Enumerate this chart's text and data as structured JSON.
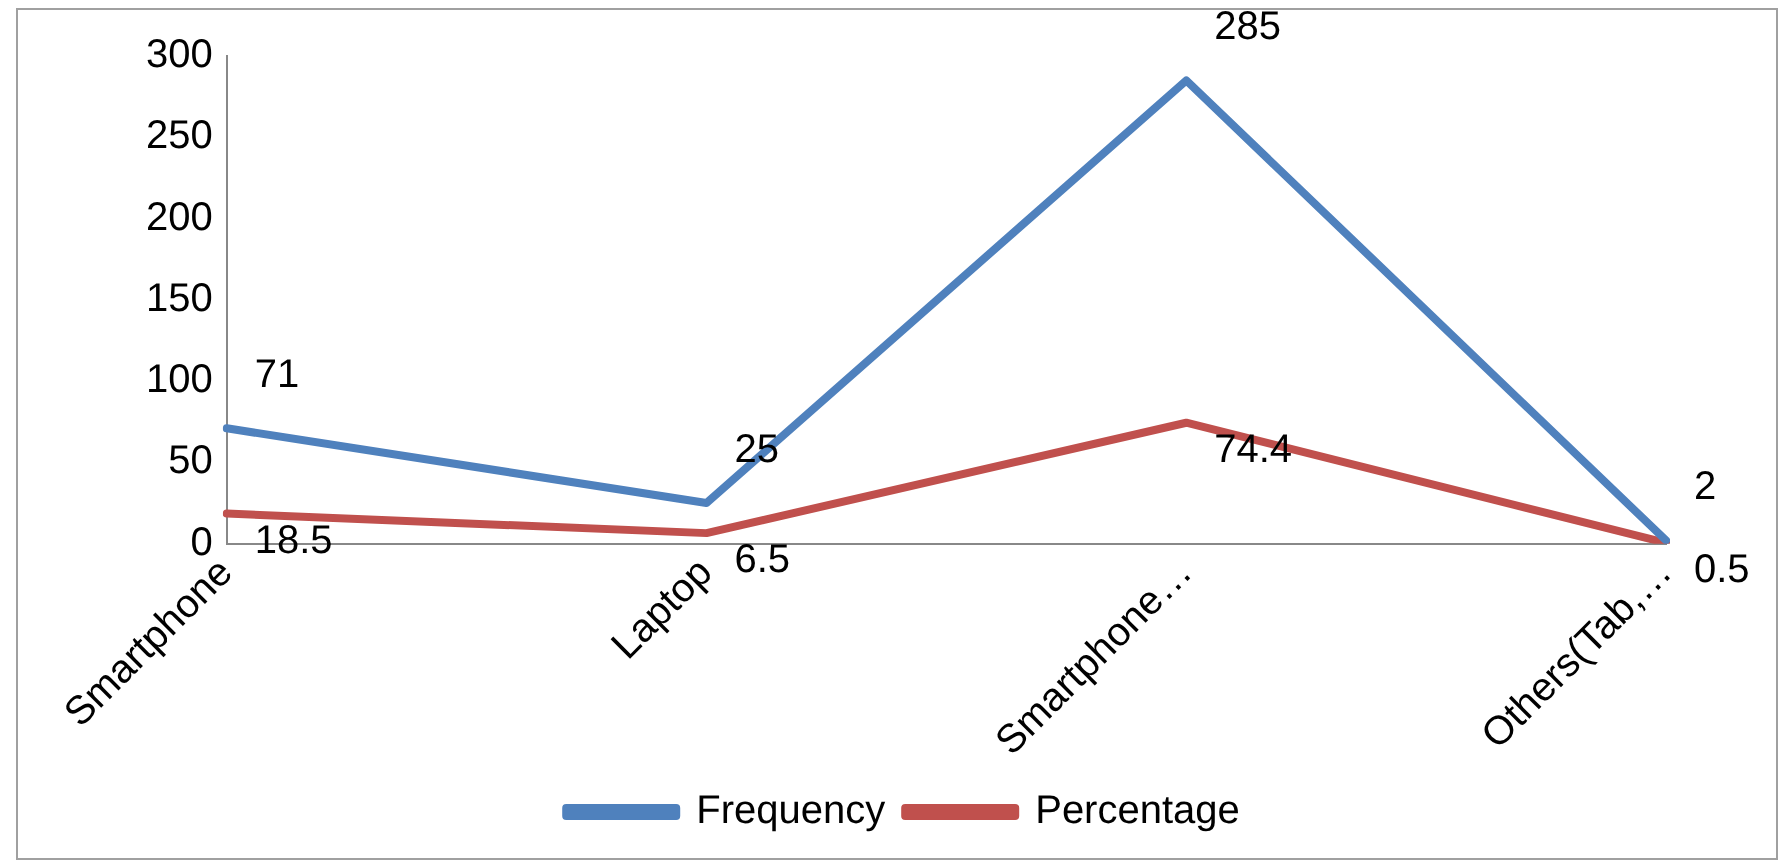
{
  "chart_data": {
    "type": "line",
    "categories": [
      "Smartphone",
      "Laptop",
      "Smartphone…",
      "Others(Tab,…"
    ],
    "series": [
      {
        "name": "Frequency",
        "color": "#4f81bd",
        "values": [
          71,
          25,
          285,
          2
        ]
      },
      {
        "name": "Percentage",
        "color": "#c0504d",
        "values": [
          18.5,
          6.5,
          74.4,
          0.5
        ]
      }
    ],
    "ylim": [
      0,
      300
    ],
    "yticks": [
      0,
      50,
      100,
      150,
      200,
      250,
      300
    ],
    "grid": false,
    "legend": "bottom",
    "marker": "none",
    "line_style": "solid",
    "data_labels": true
  }
}
